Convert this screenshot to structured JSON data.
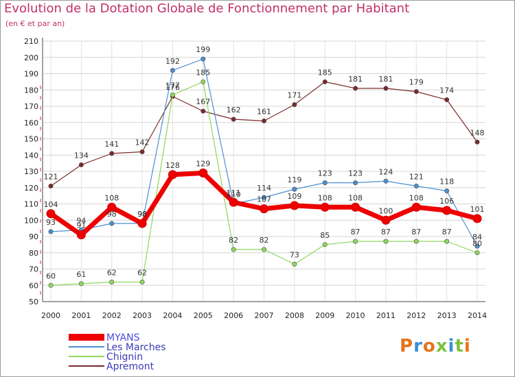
{
  "title": "Evolution de la Dotation Globale de Fonctionnement par Habitant",
  "subtitle": "(en € et par an)",
  "logo": "Proxiti",
  "chart_data": {
    "type": "line",
    "x": [
      "2000",
      "2001",
      "2002",
      "2003",
      "2004",
      "2005",
      "2006",
      "2007",
      "2008",
      "2009",
      "2010",
      "2011",
      "2012",
      "2013",
      "2014"
    ],
    "ylim": [
      50,
      210
    ],
    "yticks": [
      50,
      60,
      70,
      80,
      90,
      100,
      110,
      120,
      130,
      140,
      150,
      160,
      170,
      180,
      190,
      200,
      210
    ],
    "grid": true,
    "legend_position": "bottom-left",
    "series": [
      {
        "name": "Apremont",
        "color": "#7a2a2a",
        "values": [
          121,
          134,
          141,
          142,
          176,
          167,
          162,
          161,
          171,
          185,
          181,
          181,
          179,
          174,
          148
        ]
      },
      {
        "name": "Les Marches",
        "color": "#4a8fd0",
        "values": [
          93,
          94,
          98,
          98,
          192,
          199,
          110,
          114,
          119,
          123,
          123,
          124,
          121,
          118,
          84
        ]
      },
      {
        "name": "Chignin",
        "color": "#8fd65a",
        "values": [
          60,
          61,
          62,
          62,
          177,
          185,
          82,
          82,
          73,
          85,
          87,
          87,
          87,
          87,
          80
        ]
      },
      {
        "name": "MYANS",
        "color": "#ee0000",
        "values": [
          104,
          91,
          108,
          98,
          128,
          129,
          111,
          107,
          109,
          108,
          108,
          100,
          108,
          106,
          101
        ]
      }
    ],
    "legend_order": [
      "MYANS",
      "Les Marches",
      "Chignin",
      "Apremont"
    ]
  }
}
